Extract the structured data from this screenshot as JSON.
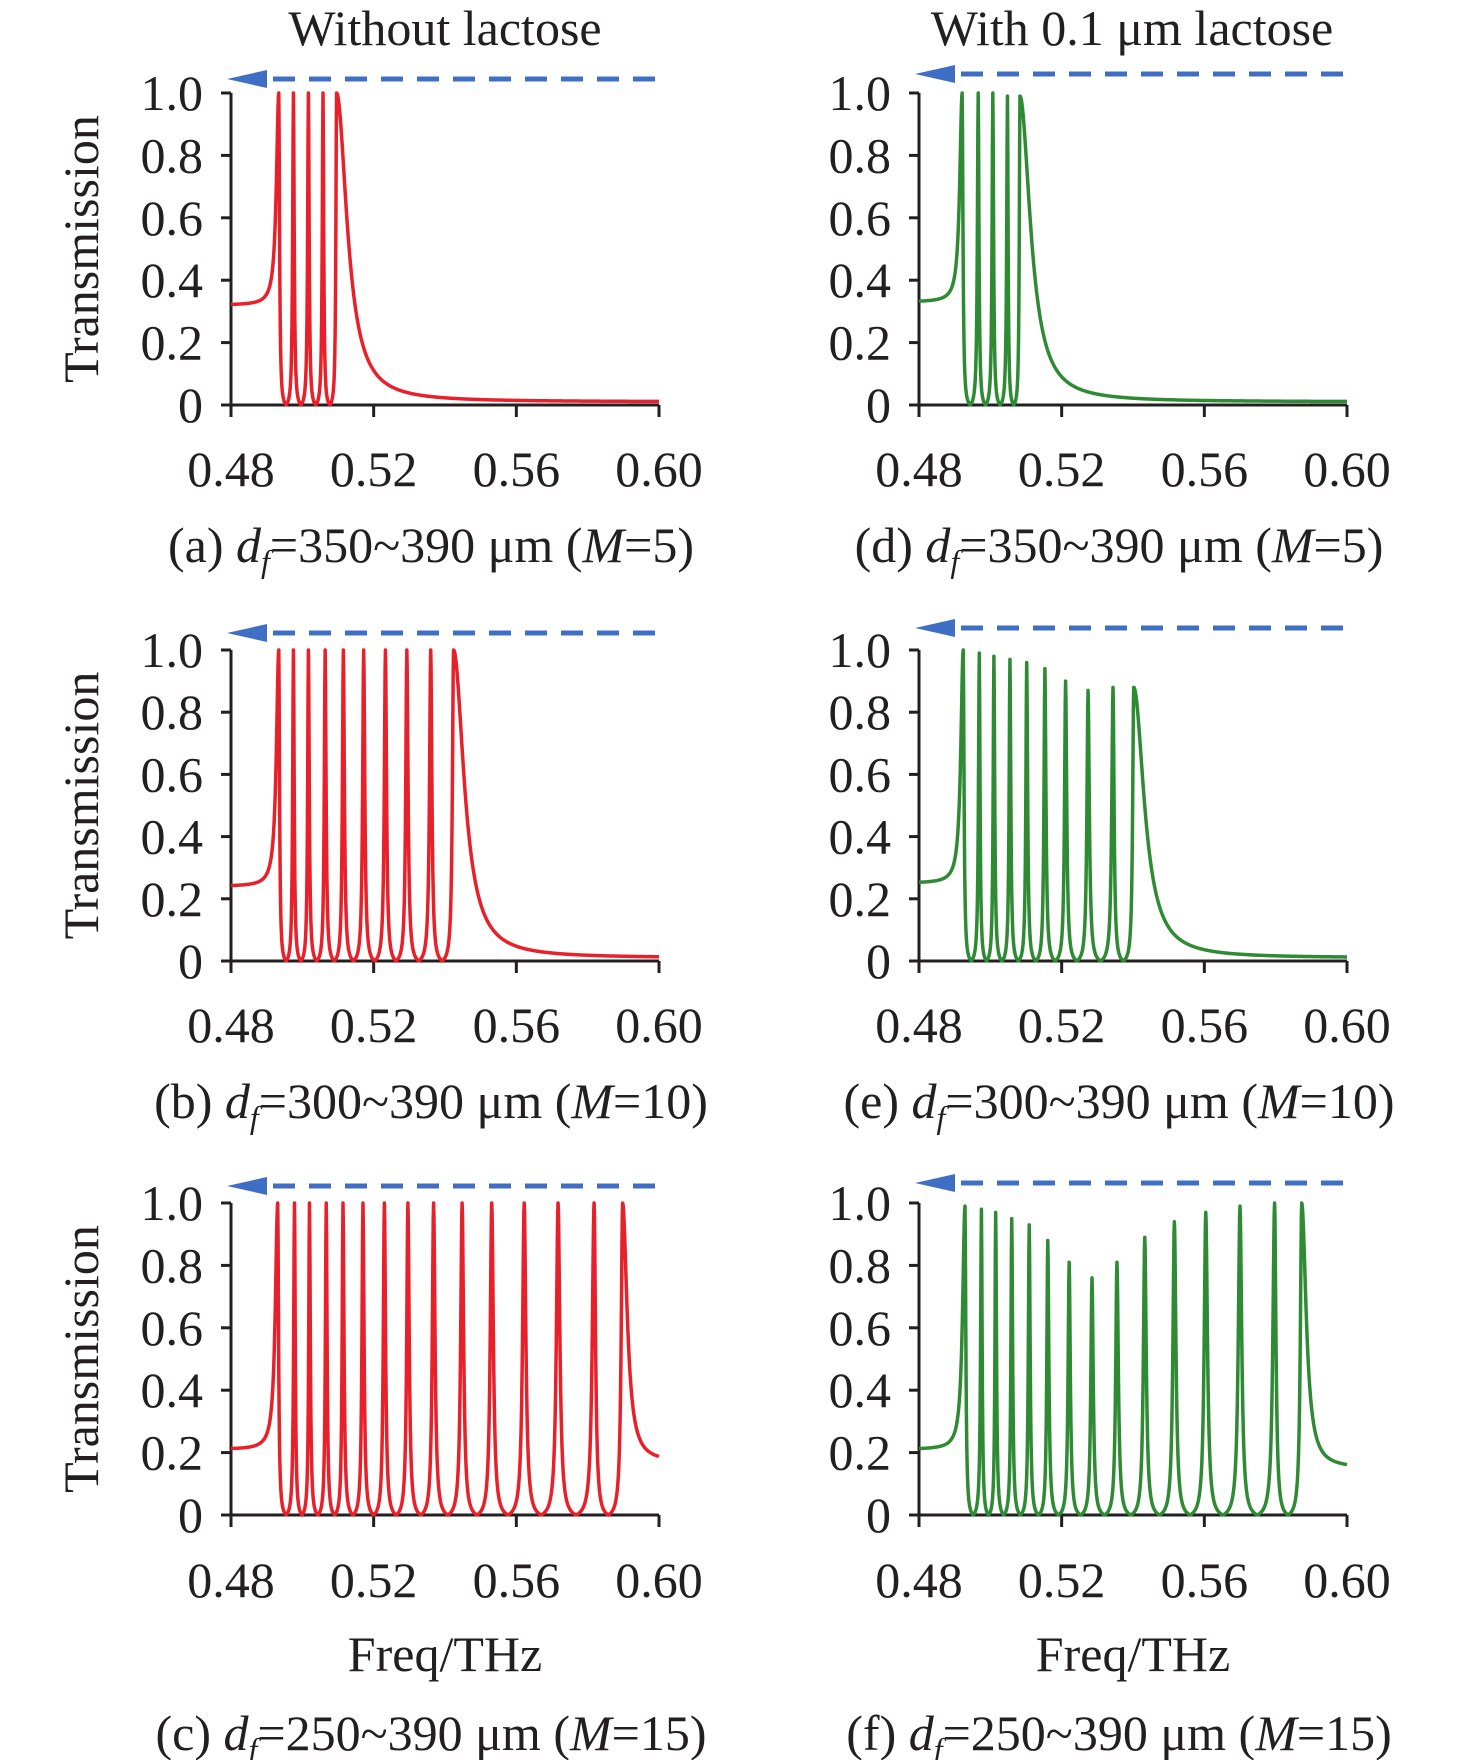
{
  "column_titles": [
    "Without lactose",
    "With 0.1 μm lactose"
  ],
  "colors": {
    "without_lactose": "#e8202a",
    "with_lactose": "#2e8b34",
    "arrow": "#3f6fc4",
    "axis": "#231f20"
  },
  "chart_data": [
    {
      "id": "a",
      "type": "line",
      "column": 0,
      "row": 0,
      "ylabel": "Transmission",
      "xlabel": "",
      "xlim": [
        0.48,
        0.6
      ],
      "ylim": [
        0,
        1.0
      ],
      "xticks": [
        "0.48",
        "0.52",
        "0.56",
        "0.60"
      ],
      "yticks": [
        "0",
        "0.2",
        "0.4",
        "0.6",
        "0.8",
        "1.0"
      ],
      "caption": {
        "prefix": "(a) ",
        "var": "d",
        "sub": "f",
        "range": "=350~390 μm (",
        "m": "M",
        "suffix": "=5)"
      },
      "start_value": 0.32,
      "end_value": 0.01,
      "peaks": [
        [
          0.4934,
          1.0
        ],
        [
          0.4975,
          1.0
        ],
        [
          0.5017,
          1.0
        ],
        [
          0.5058,
          1.0
        ],
        [
          0.5096,
          1.0
        ]
      ]
    },
    {
      "id": "b",
      "type": "line",
      "column": 0,
      "row": 1,
      "ylabel": "Transmission",
      "xlabel": "",
      "xlim": [
        0.48,
        0.6
      ],
      "ylim": [
        0,
        1.0
      ],
      "xticks": [
        "0.48",
        "0.52",
        "0.56",
        "0.60"
      ],
      "yticks": [
        "0",
        "0.2",
        "0.4",
        "0.6",
        "0.8",
        "1.0"
      ],
      "caption": {
        "prefix": "(b) ",
        "var": "d",
        "sub": "f",
        "range": "=300~390 μm (",
        "m": "M",
        "suffix": "=10)"
      },
      "start_value": 0.24,
      "end_value": 0.01,
      "peaks": [
        [
          0.4934,
          1.0
        ],
        [
          0.4975,
          1.0
        ],
        [
          0.5017,
          1.0
        ],
        [
          0.5064,
          1.0
        ],
        [
          0.5115,
          1.0
        ],
        [
          0.5172,
          1.0
        ],
        [
          0.5233,
          1.0
        ],
        [
          0.5293,
          1.0
        ],
        [
          0.536,
          1.0
        ],
        [
          0.5424,
          1.0
        ]
      ]
    },
    {
      "id": "c",
      "type": "line",
      "column": 0,
      "row": 2,
      "ylabel": "Transmission",
      "xlabel": "Freq/THz",
      "xlim": [
        0.48,
        0.6
      ],
      "ylim": [
        0,
        1.0
      ],
      "xticks": [
        "0.48",
        "0.52",
        "0.56",
        "0.60"
      ],
      "yticks": [
        "0",
        "0.2",
        "0.4",
        "0.6",
        "0.8",
        "1.0"
      ],
      "caption": {
        "prefix": "(c) ",
        "var": "d",
        "sub": "f",
        "range": "=250~390 μm (",
        "m": "M",
        "suffix": "=15)"
      },
      "start_value": 0.21,
      "end_value": 0.17,
      "peaks": [
        [
          0.4931,
          1.0
        ],
        [
          0.4978,
          1.0
        ],
        [
          0.502,
          1.0
        ],
        [
          0.5067,
          1.0
        ],
        [
          0.5114,
          1.0
        ],
        [
          0.517,
          1.0
        ],
        [
          0.523,
          1.0
        ],
        [
          0.5296,
          1.0
        ],
        [
          0.5368,
          1.0
        ],
        [
          0.5448,
          1.0
        ],
        [
          0.5531,
          1.0
        ],
        [
          0.5622,
          1.0
        ],
        [
          0.5717,
          1.0
        ],
        [
          0.5818,
          1.0
        ],
        [
          0.5898,
          1.0
        ]
      ]
    },
    {
      "id": "d",
      "type": "line",
      "column": 1,
      "row": 0,
      "ylabel": "",
      "xlabel": "",
      "xlim": [
        0.48,
        0.6
      ],
      "ylim": [
        0,
        1.0
      ],
      "xticks": [
        "0.48",
        "0.52",
        "0.56",
        "0.60"
      ],
      "yticks": [
        "0",
        "0.2",
        "0.4",
        "0.6",
        "0.8",
        "1.0"
      ],
      "caption": {
        "prefix": "(d) ",
        "var": "d",
        "sub": "f",
        "range": "=350~390 μm (",
        "m": "M",
        "suffix": "=5)"
      },
      "start_value": 0.33,
      "end_value": 0.01,
      "peaks": [
        [
          0.4921,
          1.0
        ],
        [
          0.4966,
          1.0
        ],
        [
          0.5007,
          1.0
        ],
        [
          0.5048,
          0.99
        ],
        [
          0.5083,
          0.99
        ]
      ]
    },
    {
      "id": "e",
      "type": "line",
      "column": 1,
      "row": 1,
      "ylabel": "",
      "xlabel": "",
      "xlim": [
        0.48,
        0.6
      ],
      "ylim": [
        0,
        1.0
      ],
      "xticks": [
        "0.48",
        "0.52",
        "0.56",
        "0.60"
      ],
      "yticks": [
        "0",
        "0.2",
        "0.4",
        "0.6",
        "0.8",
        "1.0"
      ],
      "caption": {
        "prefix": "(e) ",
        "var": "d",
        "sub": "f",
        "range": "=300~390 μm (",
        "m": "M",
        "suffix": "=10)"
      },
      "start_value": 0.25,
      "end_value": 0.01,
      "peaks": [
        [
          0.4924,
          1.0
        ],
        [
          0.4969,
          0.99
        ],
        [
          0.501,
          0.98
        ],
        [
          0.5055,
          0.97
        ],
        [
          0.5102,
          0.96
        ],
        [
          0.5153,
          0.94
        ],
        [
          0.5211,
          0.9
        ],
        [
          0.5274,
          0.87
        ],
        [
          0.5344,
          0.88
        ],
        [
          0.5402,
          0.88
        ]
      ]
    },
    {
      "id": "f",
      "type": "line",
      "column": 1,
      "row": 2,
      "ylabel": "",
      "xlabel": "Freq/THz",
      "xlim": [
        0.48,
        0.6
      ],
      "ylim": [
        0,
        1.0
      ],
      "xticks": [
        "0.48",
        "0.52",
        "0.56",
        "0.60"
      ],
      "yticks": [
        "0",
        "0.2",
        "0.4",
        "0.6",
        "0.8",
        "1.0"
      ],
      "caption": {
        "prefix": "(f) ",
        "var": "d",
        "sub": "f",
        "range": "=250~390 μm (",
        "m": "M",
        "suffix": "=15)"
      },
      "start_value": 0.21,
      "end_value": 0.15,
      "peaks": [
        [
          0.4929,
          0.99
        ],
        [
          0.4975,
          0.98
        ],
        [
          0.5015,
          0.97
        ],
        [
          0.506,
          0.95
        ],
        [
          0.5109,
          0.93
        ],
        [
          0.5161,
          0.88
        ],
        [
          0.5221,
          0.81
        ],
        [
          0.5285,
          0.76
        ],
        [
          0.5355,
          0.81
        ],
        [
          0.5433,
          0.89
        ],
        [
          0.5516,
          0.94
        ],
        [
          0.5604,
          0.97
        ],
        [
          0.57,
          0.99
        ],
        [
          0.5797,
          1.0
        ],
        [
          0.5873,
          1.0
        ]
      ]
    }
  ]
}
